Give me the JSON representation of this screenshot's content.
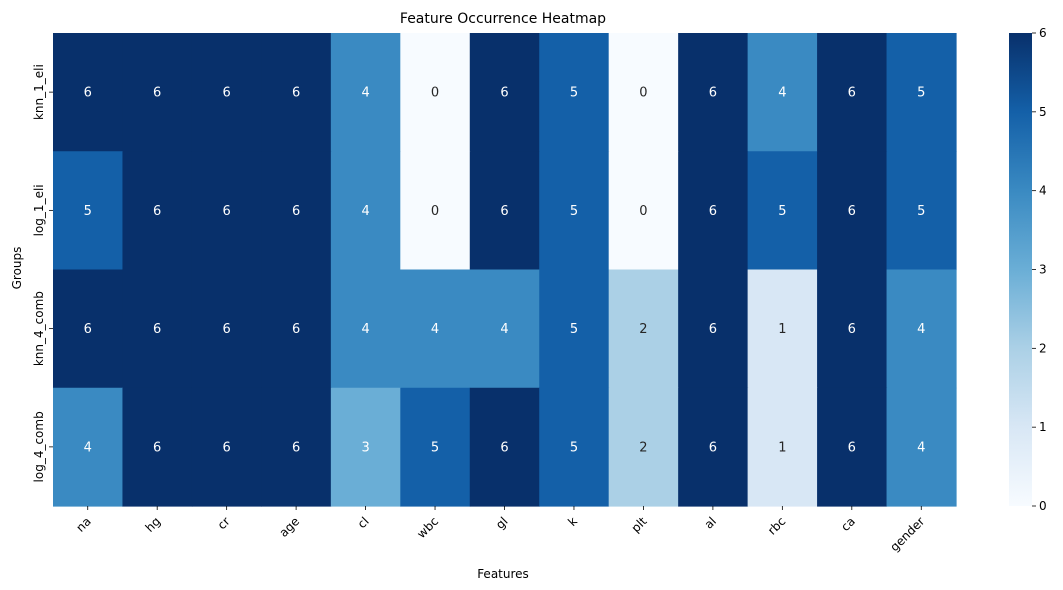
{
  "chart_data": {
    "type": "heatmap",
    "title": "Feature Occurrence Heatmap",
    "xlabel": "Features",
    "ylabel": "Groups",
    "x_categories": [
      "na",
      "hg",
      "cr",
      "age",
      "cl",
      "wbc",
      "gl",
      "k",
      "plt",
      "al",
      "rbc",
      "ca",
      "gender"
    ],
    "y_categories": [
      "knn_1_eli",
      "log_1_eli",
      "knn_4_comb",
      "log_4_comb"
    ],
    "values": [
      [
        6,
        6,
        6,
        6,
        4,
        0,
        6,
        5,
        0,
        6,
        4,
        6,
        5
      ],
      [
        5,
        6,
        6,
        6,
        4,
        0,
        6,
        5,
        0,
        6,
        5,
        6,
        5
      ],
      [
        6,
        6,
        6,
        6,
        4,
        4,
        4,
        5,
        2,
        6,
        1,
        6,
        4
      ],
      [
        4,
        6,
        6,
        6,
        3,
        5,
        6,
        5,
        2,
        6,
        1,
        6,
        4
      ]
    ],
    "annotations": true,
    "colormap": "Blues",
    "colorbar": {
      "range": [
        0,
        6
      ],
      "ticks": [
        0,
        1,
        2,
        3,
        4,
        5,
        6
      ],
      "colors": {
        "0": "#f7fbff",
        "1": "#d8e7f5",
        "2": "#abd0e6",
        "3": "#6aaed6",
        "4": "#3a8ac2",
        "5": "#1460a8",
        "6": "#08306b"
      }
    },
    "grid": false,
    "legend": "colorbar-right"
  }
}
